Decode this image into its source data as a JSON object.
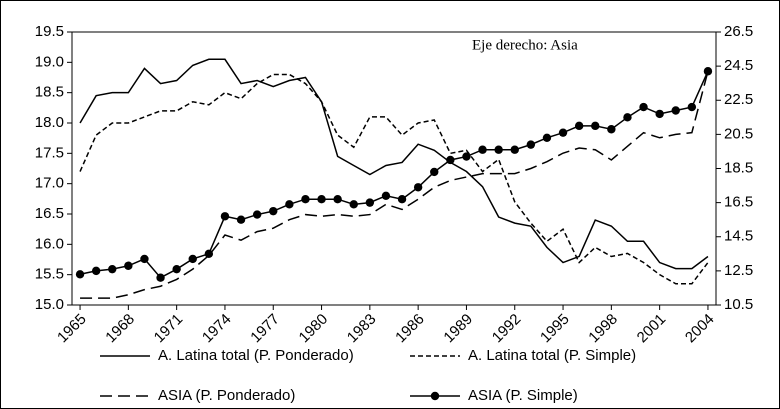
{
  "chart_data": {
    "type": "line",
    "annotation": "Eje derecho: Asia",
    "x": [
      1965,
      1966,
      1967,
      1968,
      1969,
      1970,
      1971,
      1972,
      1973,
      1974,
      1975,
      1976,
      1977,
      1978,
      1979,
      1980,
      1981,
      1982,
      1983,
      1984,
      1985,
      1986,
      1987,
      1988,
      1989,
      1990,
      1991,
      1992,
      1993,
      1994,
      1995,
      1996,
      1997,
      1998,
      1999,
      2000,
      2001,
      2002,
      2003,
      2004
    ],
    "xlim": [
      1964.5,
      2004.5
    ],
    "xticks": [
      1965,
      1968,
      1971,
      1974,
      1977,
      1980,
      1983,
      1986,
      1989,
      1992,
      1995,
      1998,
      2001,
      2004
    ],
    "ylim": [
      15,
      19.5
    ],
    "yticks": [
      {
        "value": 15,
        "label": "15.0"
      },
      15.5,
      {
        "value": 16,
        "label": "16.0"
      },
      16.5,
      {
        "value": 17,
        "label": "17.0"
      },
      17.5,
      {
        "value": 18,
        "label": "18.0"
      },
      18.5,
      {
        "value": 19,
        "label": "19.0"
      },
      19.5
    ],
    "y2lim": [
      10.5,
      26.5
    ],
    "y2ticks": [
      10.5,
      12.5,
      14.5,
      16.5,
      18.5,
      20.5,
      22.5,
      24.5,
      26.5
    ],
    "series": [
      {
        "name": "A. Latina total (P. Ponderado)",
        "color": "#000000",
        "style": "solid",
        "values": [
          18.0,
          18.45,
          18.5,
          18.5,
          18.9,
          18.65,
          18.7,
          18.95,
          19.05,
          19.05,
          18.65,
          18.7,
          18.6,
          18.7,
          18.75,
          18.35,
          17.45,
          17.3,
          17.15,
          17.3,
          17.35,
          17.65,
          17.55,
          17.35,
          17.2,
          16.95,
          16.45,
          16.35,
          16.3,
          15.95,
          15.7,
          15.8,
          16.4,
          16.3,
          16.05,
          16.05,
          15.7,
          15.6,
          15.6,
          15.8
        ]
      },
      {
        "name": "A. Latina total (P. Simple)",
        "color": "#000000",
        "style": "dashed",
        "values": [
          17.2,
          17.8,
          18.0,
          18.0,
          18.1,
          18.2,
          18.2,
          18.35,
          18.3,
          18.5,
          18.4,
          18.65,
          18.8,
          18.8,
          18.65,
          18.35,
          17.8,
          17.6,
          18.1,
          18.1,
          17.8,
          18.0,
          18.05,
          17.5,
          17.55,
          17.2,
          17.4,
          16.7,
          16.35,
          16.05,
          16.25,
          15.7,
          15.95,
          15.8,
          15.85,
          15.7,
          15.5,
          15.35,
          15.35,
          15.7
        ]
      },
      {
        "name": "ASIA (P. Ponderado)",
        "color": "#000000",
        "style": "longdash",
        "axis": "y2",
        "values": [
          10.9,
          10.9,
          10.9,
          11.1,
          11.4,
          11.6,
          12.0,
          12.6,
          13.4,
          14.6,
          14.3,
          14.8,
          15.0,
          15.5,
          15.8,
          15.7,
          15.8,
          15.7,
          15.8,
          16.4,
          16.1,
          16.7,
          17.4,
          17.8,
          18.0,
          18.2,
          18.2,
          18.2,
          18.5,
          18.9,
          19.4,
          19.7,
          19.6,
          19.0,
          19.8,
          20.6,
          20.3,
          20.5,
          20.6,
          24.2
        ]
      },
      {
        "name": "ASIA (P. Simple)",
        "color": "#000000",
        "style": "solid",
        "marker": "circle",
        "axis": "y2",
        "values": [
          12.3,
          12.5,
          12.6,
          12.8,
          13.2,
          12.1,
          12.6,
          13.2,
          13.5,
          15.7,
          15.5,
          15.8,
          16.0,
          16.4,
          16.7,
          16.7,
          16.7,
          16.4,
          16.5,
          16.9,
          16.7,
          17.4,
          18.3,
          19.0,
          19.2,
          19.6,
          19.6,
          19.6,
          19.9,
          20.3,
          20.6,
          21.0,
          21.0,
          20.8,
          21.5,
          22.1,
          21.7,
          21.9,
          22.1,
          24.2
        ]
      }
    ]
  }
}
